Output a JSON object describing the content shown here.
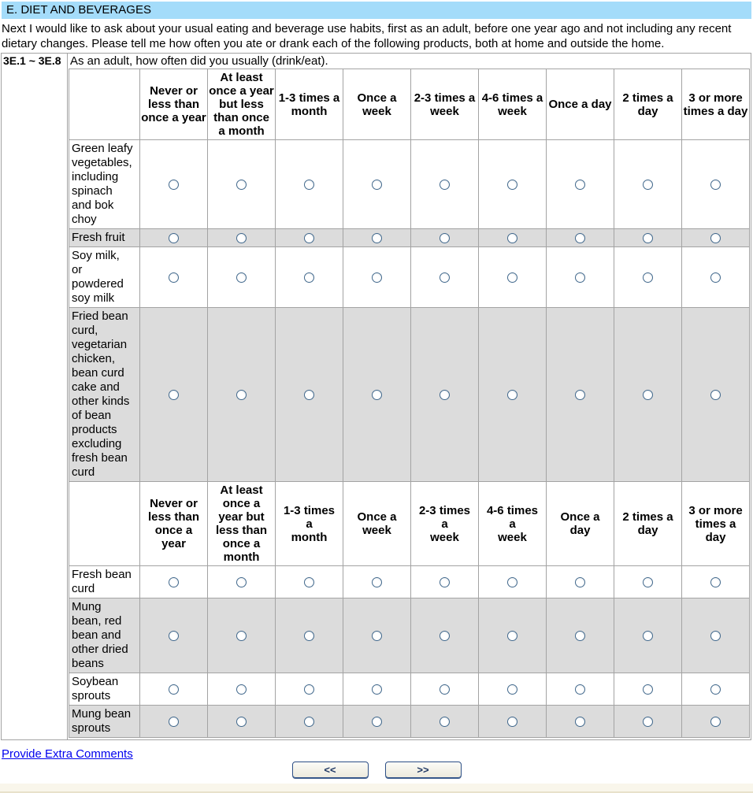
{
  "section": {
    "title": "E. DIET AND BEVERAGES"
  },
  "intro_text": "Next I would like to ask about your usual eating and beverage use habits, first as an adult, before one year ago and not including any recent dietary changes. Please tell me how often you ate or drank each of the following products, both at home and outside the home.",
  "question": {
    "code": "3E.1 ~ 3E.8",
    "text": "As an adult, how often did you usually (drink/eat)."
  },
  "survey_table": {
    "header_row1": [
      "Never or\nless than\nonce a year",
      "At least\nonce a year\nbut less\nthan once\na month",
      "1-3 times a\nmonth",
      "Once a\nweek",
      "2-3 times a\nweek",
      "4-6 times a\nweek",
      "Once a day",
      "2 times a\nday",
      "3 or more\ntimes a day"
    ],
    "header_row2": [
      "Never or\nless than\nonce a\nyear",
      "At least\nonce a\nyear but\nless than\nonce a\nmonth",
      "1-3 times a\nmonth",
      "Once a\nweek",
      "2-3 times a\nweek",
      "4-6 times a\nweek",
      "Once a day",
      "2 times a\nday",
      "3 or more\ntimes a day"
    ],
    "items": [
      {
        "label": "Green leafy\nvegetables,\nincluding\nspinach\nand bok\nchoy",
        "shaded": false,
        "selected": null
      },
      {
        "label": "Fresh fruit",
        "shaded": true,
        "selected": null
      },
      {
        "label": "Soy milk,\nor\npowdered\nsoy milk",
        "shaded": false,
        "selected": null
      },
      {
        "label": "Fried bean\ncurd,\nvegetarian\nchicken,\nbean curd\ncake and\nother kinds\nof bean\nproducts\nexcluding\nfresh bean\ncurd",
        "shaded": true,
        "selected": null
      },
      {
        "label": "Fresh bean\ncurd",
        "shaded": false,
        "selected": null
      },
      {
        "label": "Mung\nbean, red\nbean and\nother dried\nbeans",
        "shaded": true,
        "selected": null
      },
      {
        "label": "Soybean\nsprouts",
        "shaded": false,
        "selected": null
      },
      {
        "label": "Mung bean\nsprouts",
        "shaded": true,
        "selected": null
      }
    ]
  },
  "footer": {
    "comments_link_label": "Provide Extra Comments",
    "prev_button_label": "<<",
    "next_button_label": ">>"
  },
  "colors": {
    "title_bar": "#A4DCFA",
    "shaded_row": "#DCDCDC",
    "grid_border": "#A3A3A3",
    "link": "#0000EE",
    "radio_border": "#41688C",
    "button_border": "#2D4F86",
    "button_text": "#1F3864",
    "footer_bar": "#F9F6EB",
    "footer_line": "#E8E1CB"
  }
}
